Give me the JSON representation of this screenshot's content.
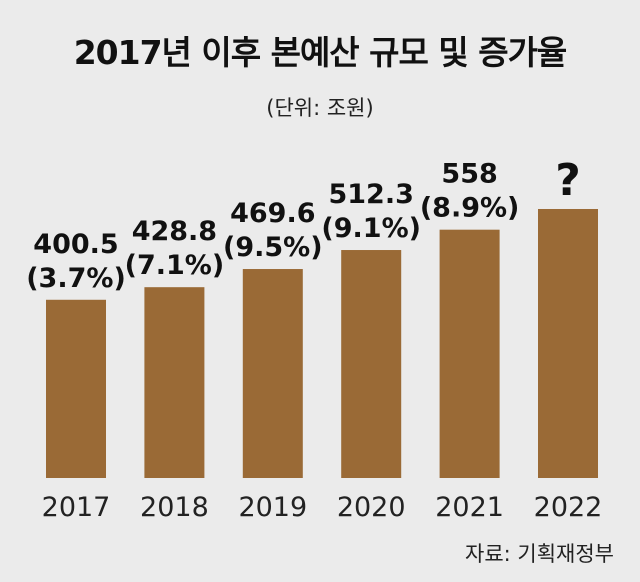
{
  "chart_data": {
    "type": "bar",
    "title": "2017년 이후 본예산 규모 및 증가율",
    "unit": "(단위: 조원)",
    "categories": [
      "2017",
      "2018",
      "2019",
      "2020",
      "2021",
      "2022"
    ],
    "values": [
      400.5,
      428.8,
      469.6,
      512.3,
      558,
      604.5
    ],
    "value_labels": [
      "400.5",
      "428.8",
      "469.6",
      "512.3",
      "558",
      ""
    ],
    "growth_labels": [
      "(3.7%)",
      "(7.1%)",
      "(9.5%)",
      "(9.1%)",
      "(8.9%)",
      ""
    ],
    "unknown_marker": "?",
    "bar_color": "#9a6a36",
    "background": "#ebebeb",
    "grid": false,
    "legend": "none"
  },
  "source": "자료: 기획재정부"
}
